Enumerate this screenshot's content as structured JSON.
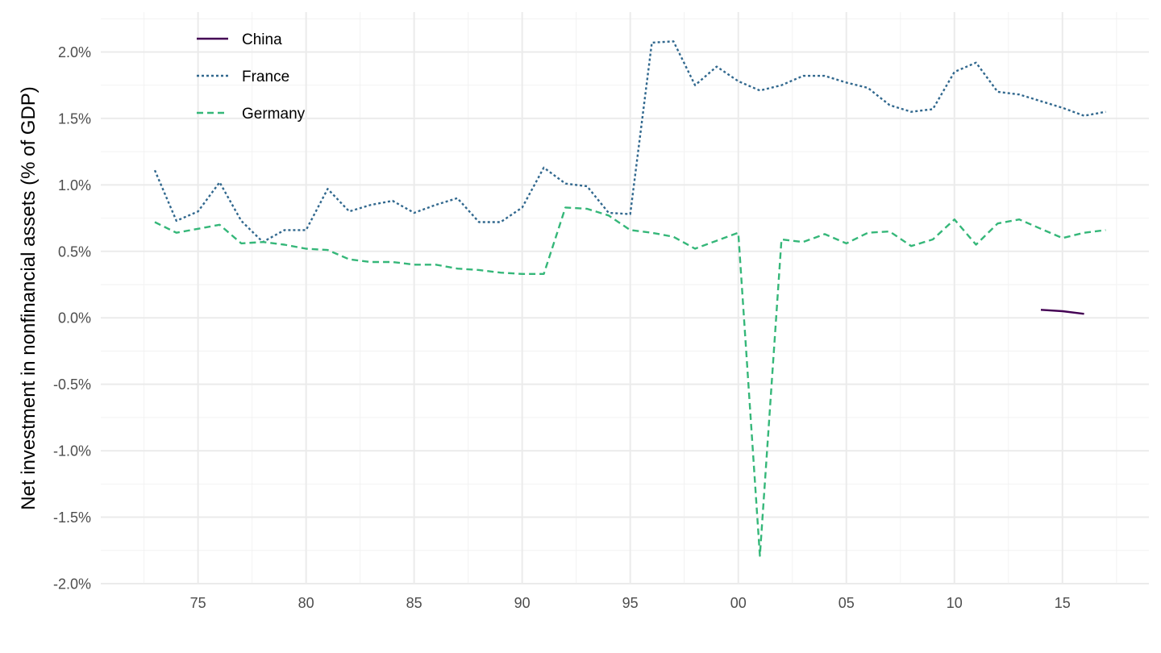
{
  "chart_data": {
    "type": "line",
    "ylabel": "Net investment in nonfinancial assets (% of GDP)",
    "xlabel": "",
    "xlim": [
      1970.5,
      2019
    ],
    "ylim": [
      -2.0,
      2.3
    ],
    "x_ticks": [
      1975,
      1980,
      1985,
      1990,
      1995,
      2000,
      2005,
      2010,
      2015
    ],
    "x_tick_labels": [
      "75",
      "80",
      "85",
      "90",
      "95",
      "00",
      "05",
      "10",
      "15"
    ],
    "y_ticks": [
      -2.0,
      -1.5,
      -1.0,
      -0.5,
      0.0,
      0.5,
      1.0,
      1.5,
      2.0
    ],
    "y_tick_labels": [
      "-2.0%",
      "-1.5%",
      "-1.0%",
      "-0.5%",
      "0.0%",
      "0.5%",
      "1.0%",
      "1.5%",
      "2.0%"
    ],
    "grid": true,
    "legend_position": "top-left",
    "series": [
      {
        "name": "China",
        "color": "#440154",
        "dash": "solid",
        "x": [
          2014,
          2015,
          2016
        ],
        "y": [
          0.06,
          0.05,
          0.03
        ]
      },
      {
        "name": "France",
        "color": "#31688E",
        "dash": "dotted",
        "x": [
          1973,
          1974,
          1975,
          1976,
          1977,
          1978,
          1979,
          1980,
          1981,
          1982,
          1983,
          1984,
          1985,
          1986,
          1987,
          1988,
          1989,
          1990,
          1991,
          1992,
          1993,
          1994,
          1995,
          1996,
          1997,
          1998,
          1999,
          2000,
          2001,
          2002,
          2003,
          2004,
          2005,
          2006,
          2007,
          2008,
          2009,
          2010,
          2011,
          2012,
          2013,
          2014,
          2015,
          2016,
          2017
        ],
        "y": [
          1.11,
          0.73,
          0.8,
          1.02,
          0.73,
          0.57,
          0.66,
          0.66,
          0.97,
          0.8,
          0.85,
          0.88,
          0.79,
          0.85,
          0.9,
          0.72,
          0.72,
          0.83,
          1.13,
          1.01,
          0.99,
          0.79,
          0.78,
          2.07,
          2.08,
          1.75,
          1.89,
          1.78,
          1.71,
          1.75,
          1.82,
          1.82,
          1.77,
          1.73,
          1.6,
          1.55,
          1.57,
          1.85,
          1.92,
          1.7,
          1.68,
          1.63,
          1.58,
          1.52,
          1.55
        ]
      },
      {
        "name": "Germany",
        "color": "#35B779",
        "dash": "dashed",
        "x": [
          1973,
          1974,
          1975,
          1976,
          1977,
          1978,
          1979,
          1980,
          1981,
          1982,
          1983,
          1984,
          1985,
          1986,
          1987,
          1988,
          1989,
          1990,
          1991,
          1992,
          1993,
          1994,
          1995,
          1996,
          1997,
          1998,
          1999,
          2000,
          2001,
          2002,
          2003,
          2004,
          2005,
          2006,
          2007,
          2008,
          2009,
          2010,
          2011,
          2012,
          2013,
          2014,
          2015,
          2016,
          2017
        ],
        "y": [
          0.72,
          0.64,
          0.67,
          0.7,
          0.56,
          0.57,
          0.55,
          0.52,
          0.51,
          0.44,
          0.42,
          0.42,
          0.4,
          0.4,
          0.37,
          0.36,
          0.34,
          0.33,
          0.33,
          0.83,
          0.82,
          0.77,
          0.66,
          0.64,
          0.61,
          0.52,
          0.58,
          0.64,
          -1.79,
          0.59,
          0.57,
          0.63,
          0.56,
          0.64,
          0.65,
          0.54,
          0.59,
          0.74,
          0.55,
          0.71,
          0.74,
          0.67,
          0.6,
          0.64,
          0.66
        ]
      }
    ]
  }
}
